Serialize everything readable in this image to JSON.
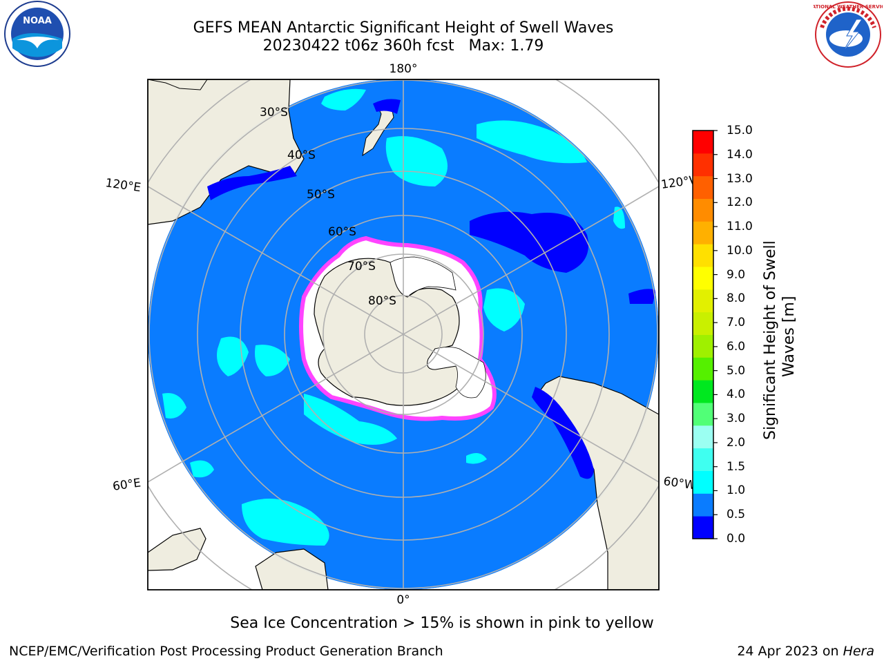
{
  "title": {
    "line1": "GEFS MEAN Antarctic Significant Height of Swell Waves",
    "line2": "20230422 t06z 360h fcst   Max: 1.79"
  },
  "logos": {
    "left": {
      "name": "noaa-logo",
      "text": "NOAA"
    },
    "right": {
      "name": "nws-logo",
      "text": "NATIONAL WEATHER SERVICE"
    }
  },
  "map": {
    "projection": "south-polar-stereographic",
    "longitude_labels": {
      "top": "180°",
      "bottom": "0°",
      "upper_left": "120°E",
      "upper_right": "120°W",
      "lower_left": "60°E",
      "lower_right": "60°W"
    },
    "latitude_labels": [
      "30°S",
      "40°S",
      "50°S",
      "60°S",
      "70°S",
      "80°S"
    ],
    "colors": {
      "ocean": "#0a7cff",
      "land": "#efede0",
      "low_swell": "#0000ff",
      "mid_swell": "#00ffff",
      "sea_ice_edge": "#ff44ff",
      "grid": "#b0b0b0"
    }
  },
  "colorbar": {
    "title_line1": "Significant Height of Swell",
    "title_line2": "Waves [m]",
    "ticks": [
      "15.0",
      "14.0",
      "13.0",
      "12.0",
      "11.0",
      "10.0",
      "9.0",
      "8.0",
      "7.0",
      "6.0",
      "5.0",
      "4.0",
      "3.0",
      "2.0",
      "1.5",
      "1.0",
      "0.5",
      "0.0"
    ],
    "colors_bottom_to_top": [
      "#0000ff",
      "#0a7cff",
      "#00ffff",
      "#3ffff0",
      "#9bfff2",
      "#51ff77",
      "#00e81f",
      "#55f000",
      "#9ff000",
      "#c9f000",
      "#e2f000",
      "#ffff00",
      "#ffe000",
      "#ffb000",
      "#ff8c00",
      "#ff6000",
      "#ff3000",
      "#ff0000"
    ]
  },
  "sea_ice_note": "Sea Ice Concentration > 15% is shown in pink to yellow",
  "footer": {
    "left": "NCEP/EMC/Verification Post Processing Product Generation Branch",
    "right_prefix": "24 Apr 2023 on ",
    "right_host": "Hera"
  }
}
